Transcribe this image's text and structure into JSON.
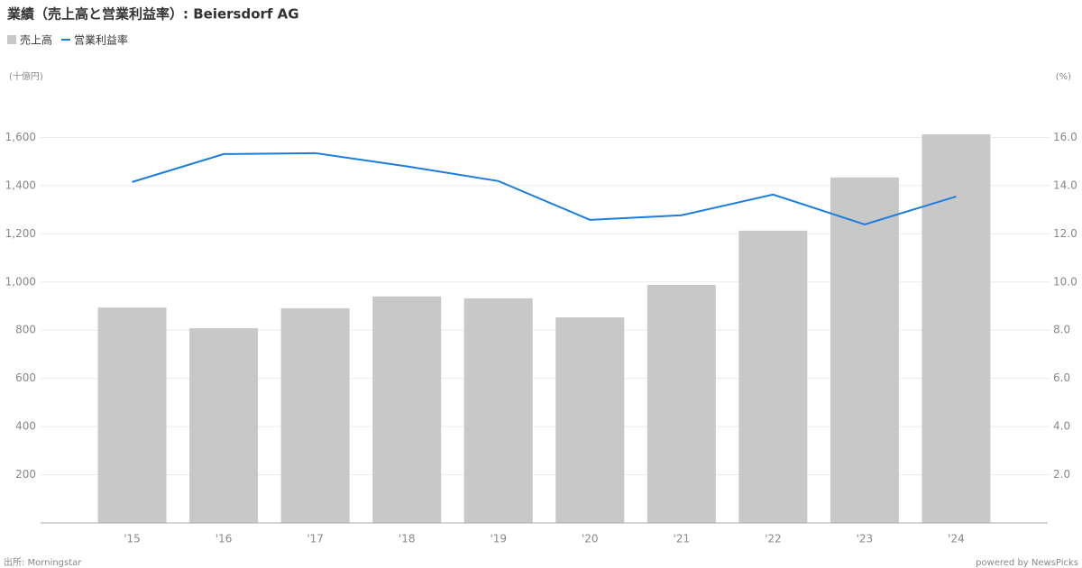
{
  "chart_data": {
    "type": "bar-line",
    "title": "業績（売上高と営業利益率）: Beiersdorf AG",
    "y_label": "(十億円)",
    "y2_label": "(%)",
    "source": "出所: Morningstar",
    "credit": "powered by NewsPicks",
    "categories": [
      "'15",
      "'16",
      "'17",
      "'18",
      "'19",
      "'20",
      "'21",
      "'22",
      "'23",
      "'24"
    ],
    "series": [
      {
        "name": "売上高",
        "type": "bar",
        "color": "#c8c8c8",
        "values": [
          894,
          808,
          891,
          940,
          932,
          853,
          988,
          1213,
          1434,
          1613
        ]
      },
      {
        "name": "営業利益率",
        "type": "line",
        "axis": "y2",
        "color": "#1a7de0",
        "values": [
          14.15,
          15.31,
          15.35,
          14.8,
          14.19,
          12.58,
          12.77,
          13.63,
          12.39,
          13.55
        ]
      }
    ],
    "ylim": [
      0,
      1800
    ],
    "yticks": [
      200,
      400,
      600,
      800,
      {
        "value": 1000,
        "label": "1,000"
      },
      {
        "value": 1200,
        "label": "1,200"
      },
      {
        "value": 1400,
        "label": "1,400"
      },
      {
        "value": 1600,
        "label": "1,600"
      }
    ],
    "y2lim": [
      0,
      18
    ],
    "y2ticks": [
      {
        "value": 2,
        "label": "2.0"
      },
      {
        "value": 4,
        "label": "4.0"
      },
      {
        "value": 6,
        "label": "6.0"
      },
      {
        "value": 8,
        "label": "8.0"
      },
      {
        "value": 10,
        "label": "10.0"
      },
      {
        "value": 12,
        "label": "12.0"
      },
      {
        "value": 14,
        "label": "14.0"
      },
      {
        "value": 16,
        "label": "16.0"
      }
    ],
    "grid": true
  }
}
